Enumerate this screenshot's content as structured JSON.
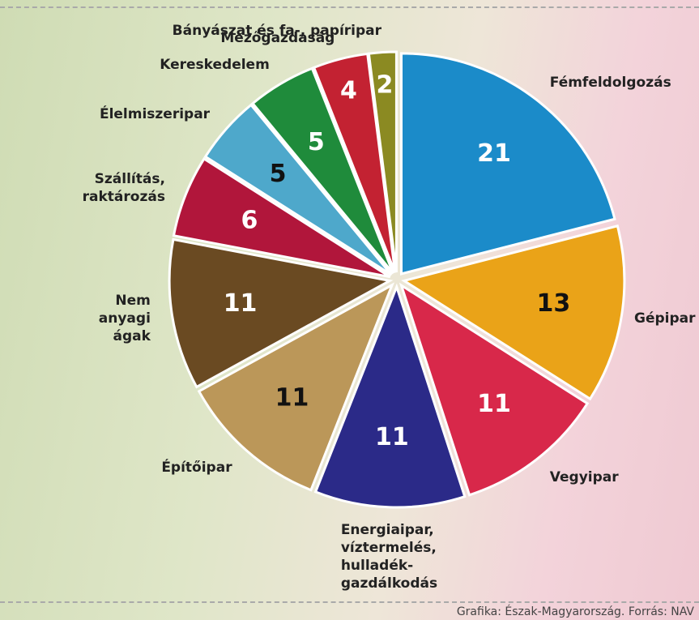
{
  "chart_data": {
    "type": "pie",
    "categories": [
      "Fémfeldolgozás",
      "Gépipar",
      "Vegyipar",
      "Energiaipar,\nvíztermelés,\nhulladék-\ngazdálkodás",
      "Építőipar",
      "Nem\nanyagi\nágak",
      "Szállítás,\nraktározás",
      "Élelmiszeripar",
      "Kereskedelem",
      "Mezőgazdaság",
      "Bányászat és fa-, papíripar"
    ],
    "values": [
      21,
      13,
      11,
      11,
      11,
      11,
      6,
      5,
      5,
      4,
      2
    ],
    "colors": [
      "#1b8bc9",
      "#eaa318",
      "#d8284a",
      "#2b2a88",
      "#bb9759",
      "#6a4a22",
      "#b1163b",
      "#4ea8cb",
      "#1f8b3b",
      "#c32232",
      "#8b8a22"
    ],
    "source": "Grafika: Észak-Magyarország. Forrás: NAV"
  }
}
